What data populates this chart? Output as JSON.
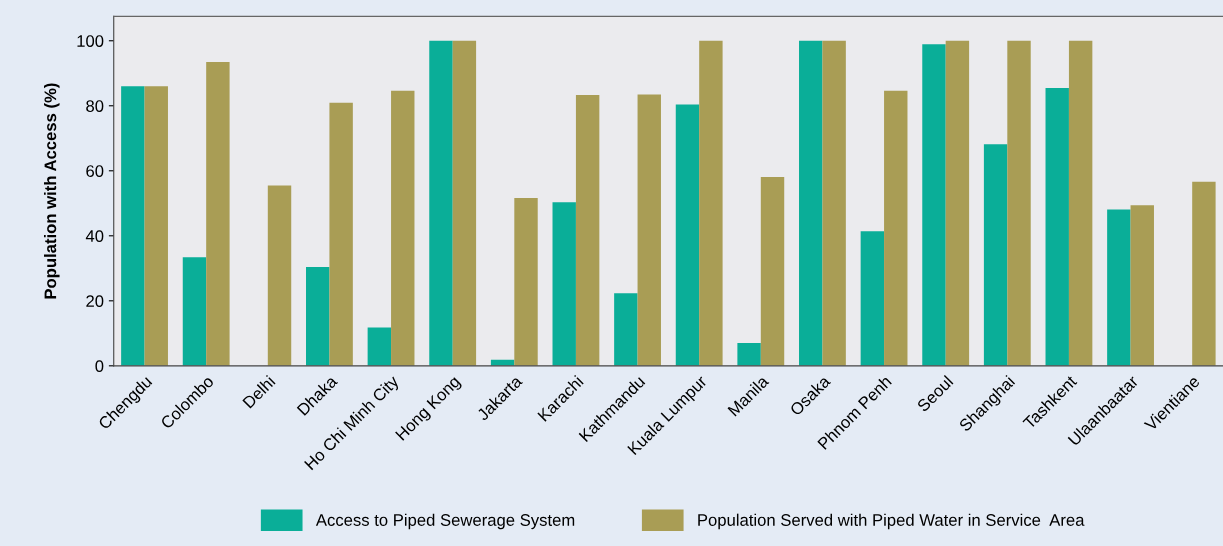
{
  "chart_data": {
    "type": "bar",
    "ylabel": "Population with Access (%)",
    "categories": [
      "Chengdu",
      "Colombo",
      "Delhi",
      "Dhaka",
      "Ho Chi Minh City",
      "Hong Kong",
      "Jakarta",
      "Karachi",
      "Kathmandu",
      "Kuala Lumpur",
      "Manila",
      "Osaka",
      "Phnom Penh",
      "Seoul",
      "Shanghai",
      "Tashkent",
      "Ulaanbaatar",
      "Vientiane"
    ],
    "series": [
      {
        "name": "Access to Piped Sewerage System",
        "color": "#0aae98",
        "values": [
          86,
          33.4,
          null,
          30.4,
          11.8,
          100,
          1.9,
          50.3,
          22.3,
          80.4,
          7,
          100,
          41.4,
          98.9,
          68.2,
          85.5,
          48.1,
          null
        ]
      },
      {
        "name": "Population Served with Piped Water in Service  Area",
        "color": "#a99d55",
        "values": [
          86,
          93.5,
          55.5,
          80.9,
          84.6,
          100,
          51.6,
          83.3,
          83.5,
          100,
          58.1,
          100,
          84.6,
          100,
          100,
          100,
          49.4,
          56.6
        ]
      }
    ],
    "ylim": [
      0,
      107.5
    ],
    "yticks": [
      0,
      20,
      40,
      60,
      80,
      100
    ],
    "grid": false,
    "legend": "bottom"
  }
}
